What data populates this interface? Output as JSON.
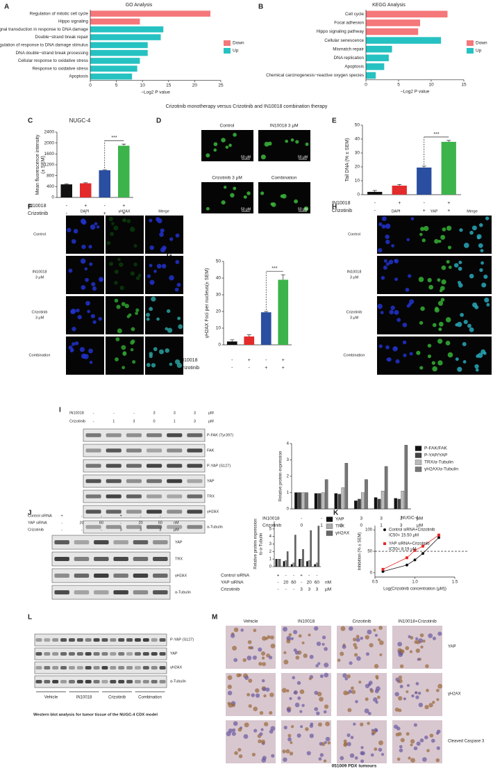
{
  "chart_data": [
    {
      "type": "hbar",
      "title": "GO Analysis",
      "categories": [
        "Regulation of mitotic cell cycle",
        "Hippo signaling",
        "Signal transduction in response to DNA damage",
        "Double−strand break repair",
        "Regulation of response to DNA damage stimulus",
        "DNA double−strand break processing",
        "Cellular response to oxidative stress",
        "Response to oxidative stress",
        "Apoptosis"
      ],
      "series": [
        {
          "name": "Down",
          "color": "#f4777a",
          "values": [
            23,
            9.5,
            null,
            null,
            null,
            null,
            null,
            null,
            null
          ]
        },
        {
          "name": "Up",
          "color": "#26c2c2",
          "values": [
            null,
            null,
            14,
            13.5,
            11,
            11,
            9.5,
            9,
            8
          ]
        }
      ],
      "xlim": [
        0,
        25
      ],
      "xticks": [
        0,
        5,
        10,
        15,
        20,
        25
      ],
      "xlabel": "−Log2 P value"
    },
    {
      "type": "hbar",
      "title": "KEGG Analysis",
      "categories": [
        "Cell cycle",
        "Focal adhesion",
        "Hippo signaling pathway",
        "Cellular senescence",
        "Mismatch repair",
        "DNA replication",
        "Apoptosis",
        "Chemical carcinogenesis−reactive oxygen species"
      ],
      "series": [
        {
          "name": "Down",
          "color": "#f4777a",
          "values": [
            12.5,
            8.3,
            8,
            null,
            null,
            null,
            null,
            null
          ]
        },
        {
          "name": "Up",
          "color": "#26c2c2",
          "values": [
            null,
            null,
            null,
            11.5,
            4,
            3.5,
            2.8,
            1.5
          ]
        }
      ],
      "xlim": [
        0,
        15
      ],
      "xticks": [
        0,
        5,
        10,
        15
      ],
      "xlabel": "−Log2 P value"
    },
    {
      "type": "bar",
      "title": "NUGC-4",
      "values": [
        480,
        520,
        1000,
        1900
      ],
      "errors": [
        20,
        20,
        20,
        60
      ],
      "colors": [
        "#111111",
        "#e32b2b",
        "#2a4ea0",
        "#3cb44b"
      ],
      "ylim": [
        0,
        2400
      ],
      "yticks": [
        0,
        400,
        800,
        1200,
        1600,
        2000,
        2400
      ],
      "ylabel": [
        "Mean fluorescence intensity",
        "(± SEM)"
      ],
      "significance": "***",
      "conditions": [
        {
          "name": "IN10018",
          "values": [
            "-",
            "+",
            "-",
            "+"
          ]
        },
        {
          "name": "Crizotinib",
          "values": [
            "-",
            "-",
            "+",
            "+"
          ]
        }
      ]
    },
    {
      "type": "bar",
      "values": [
        2,
        6.5,
        19.5,
        38
      ],
      "errors": [
        1,
        0.8,
        1,
        1
      ],
      "colors": [
        "#111111",
        "#e32b2b",
        "#2a4ea0",
        "#3cb44b"
      ],
      "ylim": [
        0,
        50
      ],
      "yticks": [
        0,
        10,
        20,
        30,
        40,
        50
      ],
      "ylabel": [
        "Tail DNA (% ± SEM)"
      ],
      "significance": "***",
      "conditions": [
        {
          "name": "IN10018",
          "values": [
            "-",
            "+",
            "-",
            "+"
          ]
        },
        {
          "name": "Crizotinib",
          "values": [
            "-",
            "-",
            "+",
            "+"
          ]
        }
      ]
    },
    {
      "type": "bar",
      "values": [
        2,
        5,
        19.5,
        39
      ],
      "errors": [
        1,
        1,
        0.5,
        3
      ],
      "colors": [
        "#111111",
        "#e32b2b",
        "#2a4ea0",
        "#3cb44b"
      ],
      "ylim": [
        0,
        50
      ],
      "yticks": [
        0,
        10,
        20,
        30,
        40,
        50
      ],
      "ylabel": [
        "γH2AX Foci per nucleus(± SEM)"
      ],
      "significance": "***",
      "conditions": [
        {
          "name": "IN10018",
          "values": [
            "-",
            "+",
            "-",
            "+"
          ]
        },
        {
          "name": "Crizotinib",
          "values": [
            "-",
            "-",
            "+",
            "+"
          ]
        }
      ]
    },
    {
      "type": "grouped_bar",
      "ylim": [
        0,
        4
      ],
      "yticks": [
        0,
        1,
        2,
        3,
        4
      ],
      "ylabel": [
        "Relative protein expression"
      ],
      "series": [
        {
          "name": "P-FAK/FAK",
          "color": "#111111",
          "values": [
            1,
            0.95,
            0.95,
            0.5,
            0.7,
            0.65
          ]
        },
        {
          "name": "P-YAP/YAP",
          "color": "#444444",
          "values": [
            1,
            0.95,
            0.9,
            0.6,
            0.6,
            0.6
          ]
        },
        {
          "name": "TRX/α-Tubulin",
          "color": "#bbbbbb",
          "values": [
            1,
            1,
            1.3,
            1,
            1.1,
            1.1
          ]
        },
        {
          "name": "γH2AX/α-Tubulin",
          "color": "#777777",
          "values": [
            1,
            1.8,
            2.8,
            1.8,
            2.6,
            3.9
          ]
        }
      ],
      "conditions": [
        {
          "name": "IN10018",
          "values": [
            "-",
            "-",
            "-",
            "3",
            "3",
            "3"
          ],
          "unit": "μM"
        },
        {
          "name": "Crizotinib",
          "values": [
            "0",
            "1",
            "3",
            "0",
            "1",
            "3"
          ],
          "unit": "μM"
        }
      ]
    },
    {
      "type": "grouped_bar",
      "ylim": [
        0,
        6
      ],
      "yticks": [
        0,
        1,
        2,
        3,
        4,
        5
      ],
      "ylabel": [
        "Relative protein expression",
        "to α-Tubulin"
      ],
      "series": [
        {
          "name": "YAP",
          "color": "#111111",
          "values": [
            1,
            0.7,
            0.3,
            1,
            0.7,
            0.3
          ]
        },
        {
          "name": "TRX",
          "color": "#aaaaaa",
          "values": [
            1,
            0.8,
            0.5,
            1,
            0.8,
            0.5
          ]
        },
        {
          "name": "γH2AX",
          "color": "#666666",
          "values": [
            1,
            2,
            4.2,
            2.3,
            4.8,
            5.4
          ]
        }
      ],
      "conditions": [
        {
          "name": "Control siRNA",
          "values": [
            "+",
            "-",
            "-",
            "+",
            "-",
            "-"
          ]
        },
        {
          "name": "YAP siRNA",
          "values": [
            "-",
            "20",
            "60",
            "-",
            "20",
            "60"
          ],
          "unit": "nM"
        },
        {
          "name": "Crizotinib",
          "values": [
            "-",
            "-",
            "-",
            "3",
            "3",
            "3"
          ],
          "unit": "μM"
        }
      ]
    },
    {
      "type": "line",
      "title": "NUGC-4",
      "xlabel": "Log(Crizotinib concentration (μM))",
      "ylabel": "Inhibition (% ± SEM)",
      "xlim": [
        0.5,
        1.5
      ],
      "xticks": [
        0.5,
        {
          "value": 1,
          "label": "1.0"
        },
        1.5
      ],
      "ylim": [
        -10,
        110
      ],
      "yticks": [
        0,
        50,
        100
      ],
      "hline": 50,
      "series": [
        {
          "name": "Control siRNA+Crizotinib",
          "ic50": "IC50= 15.50 μM",
          "color": "#111111",
          "marker": "circle",
          "x": [
            0.6,
            0.9,
            1.0,
            1.1,
            1.3
          ],
          "values": [
            3,
            18,
            30,
            45,
            82
          ]
        },
        {
          "name": "YAP siRNA+Crizotinib",
          "ic50": "IC50= 8.19 μM",
          "color": "#e32b2b",
          "marker": "square",
          "x": [
            0.6,
            0.9,
            1.0,
            1.1,
            1.3
          ],
          "values": [
            8,
            35,
            52,
            62,
            88
          ]
        }
      ]
    }
  ],
  "figure": {
    "letters": [
      "A",
      "B",
      "C",
      "D",
      "E",
      "F",
      "G",
      "H",
      "I",
      "J",
      "K",
      "L",
      "M"
    ],
    "caption_ab": "Crizotinib monotherapy versus Crizotinib and IN10018 combination therapy",
    "D": {
      "labels": [
        "Control",
        "IN10018 3 μM",
        "Crizotinib 3 μM",
        "Combination"
      ],
      "scale": "50 μM"
    },
    "F": {
      "columns": [
        "DAPI",
        "γH2AX",
        "Merge"
      ],
      "rows": [
        [
          "Control"
        ],
        [
          "IN10018",
          "3 μM"
        ],
        [
          "Crizotinib",
          "3 μM"
        ],
        [
          "Combination"
        ]
      ]
    },
    "H": {
      "columns": [
        "DAPI",
        "YAP",
        "Merge"
      ],
      "rows": [
        [
          "Control"
        ],
        [
          "IN10018",
          "3 μM"
        ],
        [
          "Crizotinib",
          "3 μM"
        ],
        [
          "Combination"
        ]
      ]
    },
    "I": {
      "header": [
        {
          "name": "IN10018",
          "values": [
            "-",
            "-",
            "-",
            "3",
            "3",
            "3"
          ],
          "unit": "μM"
        },
        {
          "name": "Crizotinib",
          "values": [
            "-",
            "1",
            "3",
            "0",
            "1",
            "3"
          ],
          "unit": "μM"
        }
      ],
      "blots": [
        "P-FAK (Tyr397)",
        "FAK",
        "P-YAP (S127)",
        "YAP",
        "TRX",
        "γH2AX",
        "α-Tubulin"
      ]
    },
    "J": {
      "header": [
        {
          "name": "Control siRNA",
          "values": [
            "+",
            "-",
            "-",
            "+",
            "-",
            "-"
          ]
        },
        {
          "name": "YAP siRNA",
          "values": [
            "-",
            "20",
            "60",
            "-",
            "20",
            "60"
          ],
          "unit": "nM"
        },
        {
          "name": "Crizotinib",
          "values": [
            "-",
            "-",
            "-",
            "3",
            "3",
            "3"
          ],
          "unit": "μM"
        }
      ],
      "blots": [
        "YAP",
        "TRX",
        "γH2AX",
        "α-Tubulin"
      ]
    },
    "L": {
      "blots": [
        "P-YAP (S127)",
        "YAP",
        "γH2AX",
        "α-Tubulin"
      ],
      "groups": [
        "Vehicle",
        "IN10018",
        "Crizotinib",
        "Combination"
      ],
      "caption": "Western blot analysis for tumor tissue of the NUGC-4 CDX model"
    },
    "M": {
      "columns": [
        "Vehicle",
        "IN10018",
        "Crizotinib",
        "IN10018+Crizotinib"
      ],
      "rows": [
        "YAP",
        "γH2AX",
        "Cleaved Caspase 3"
      ],
      "caption": "051009 PDX tumours"
    }
  }
}
